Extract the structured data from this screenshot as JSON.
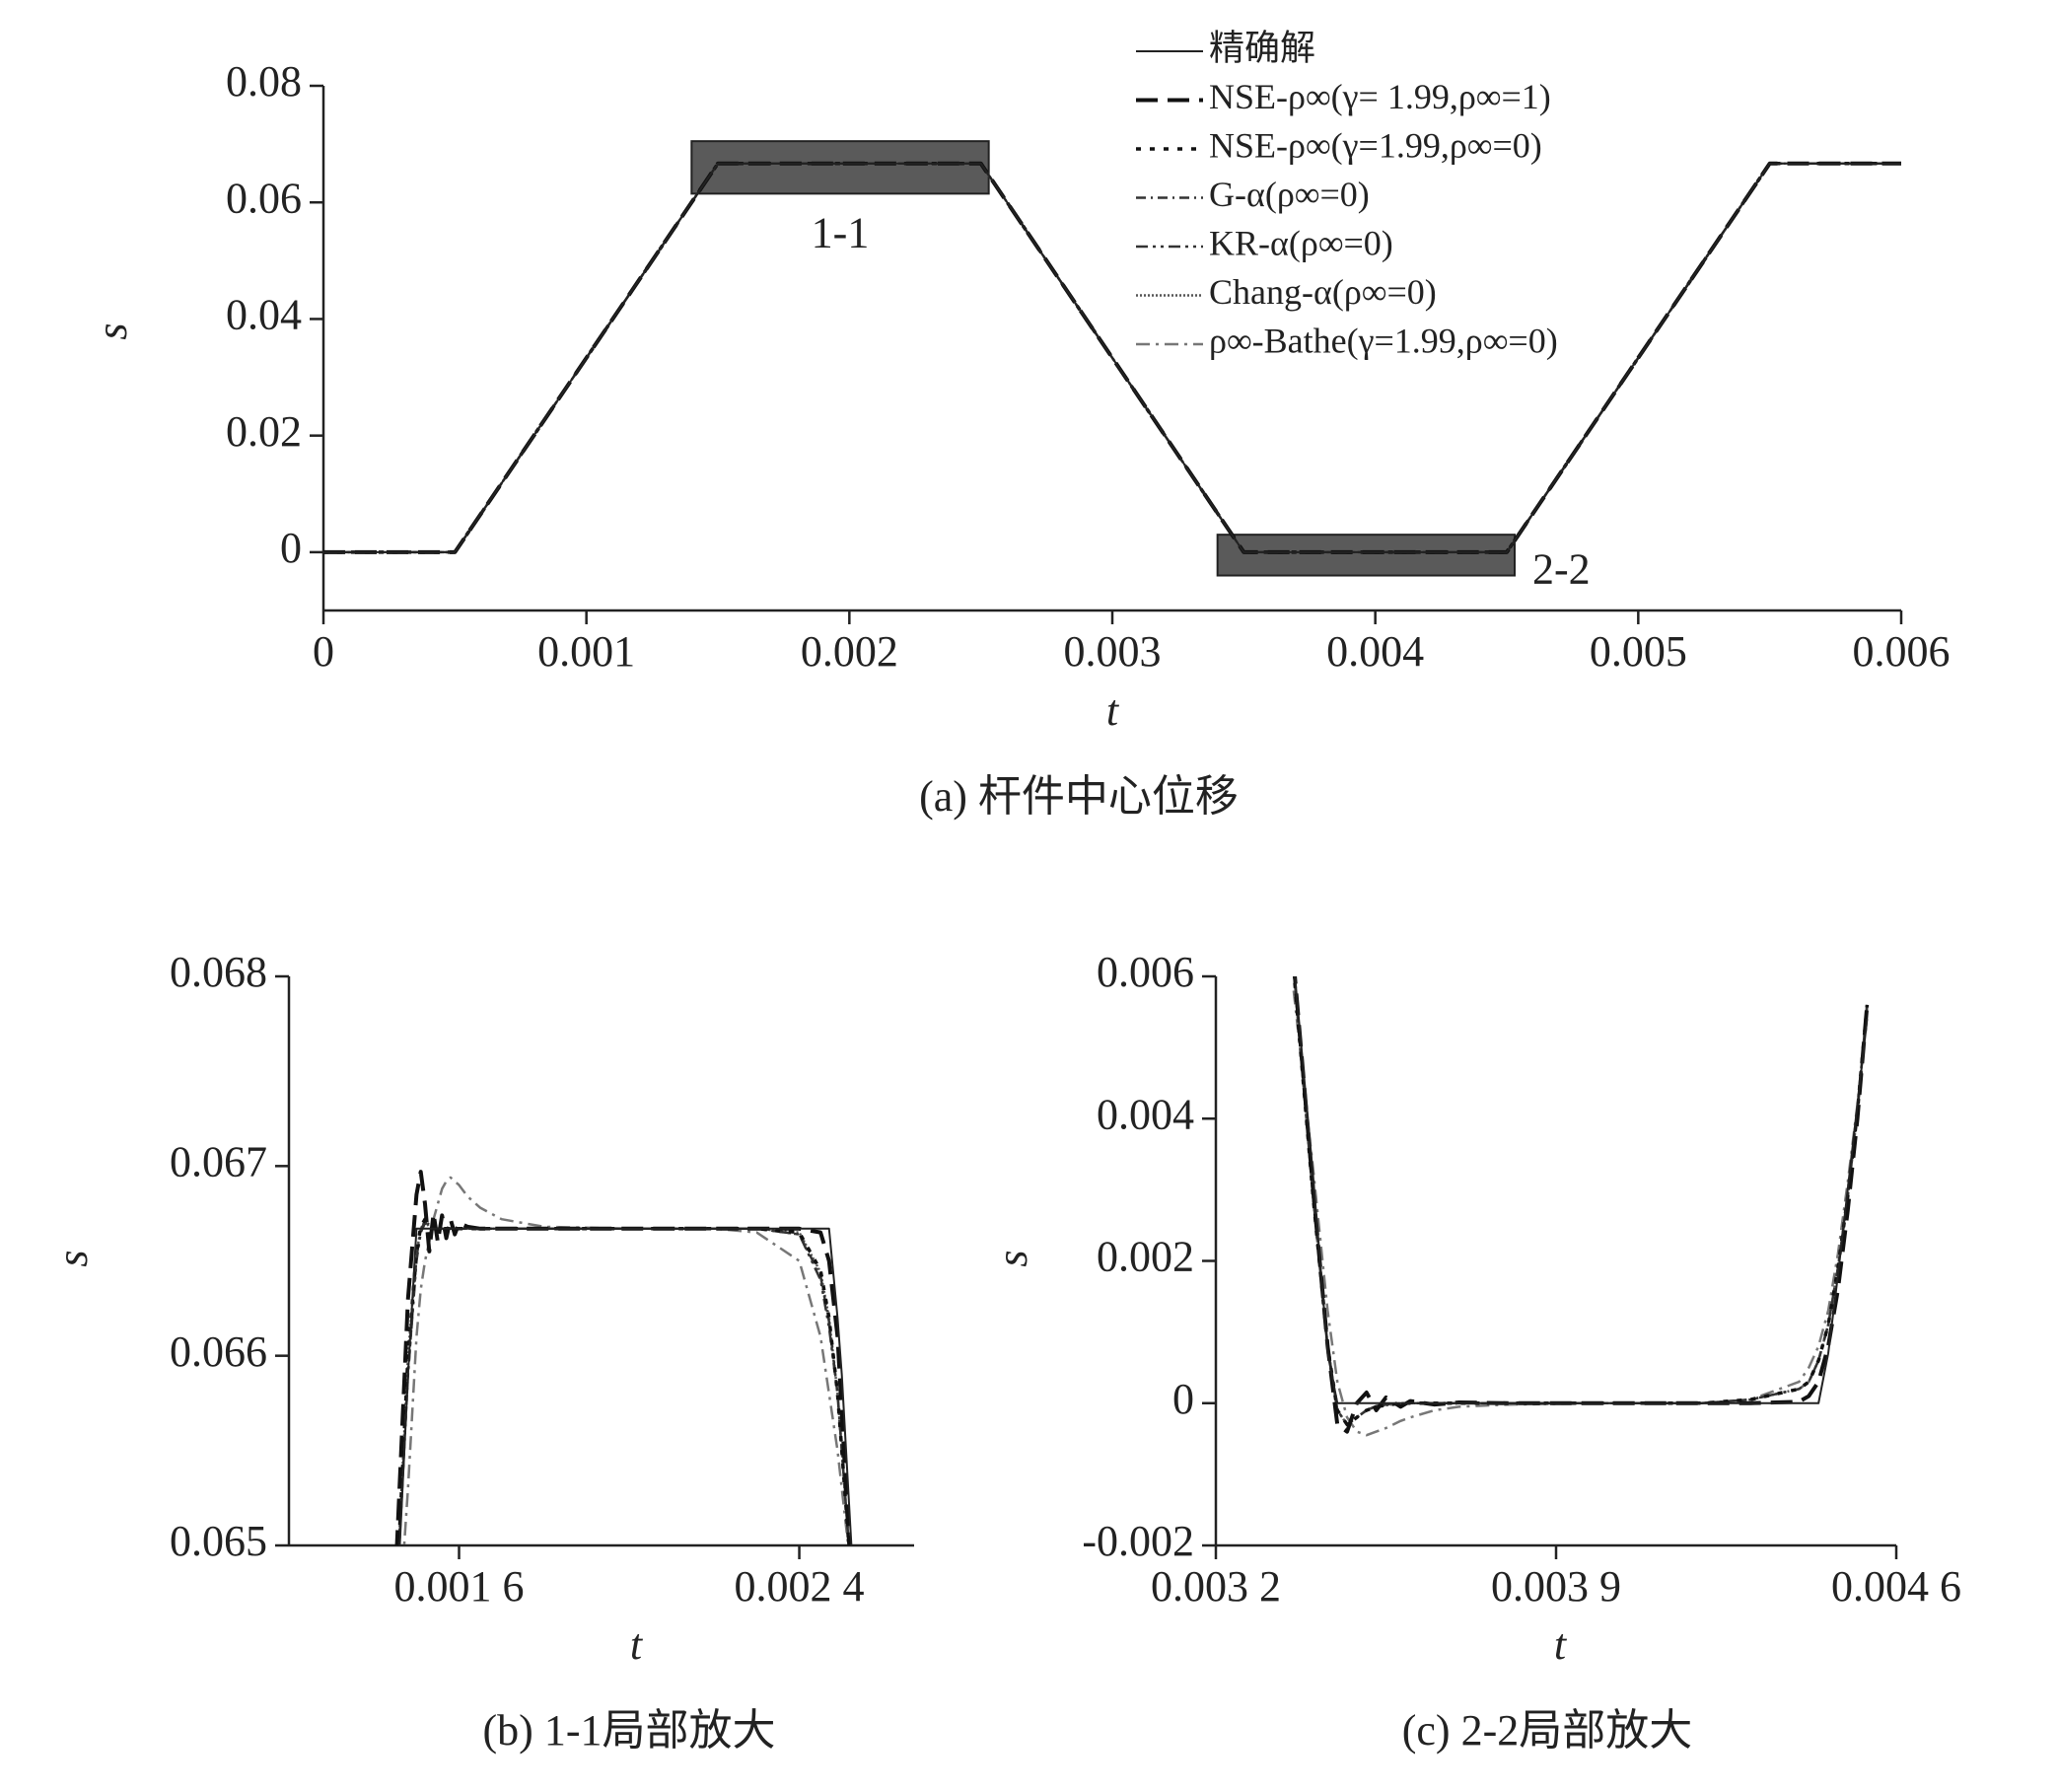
{
  "chart_data": [
    {
      "type": "line",
      "caption": "(a) 杆件中心位移",
      "xlabel": "t",
      "ylabel": "s",
      "xlim": [
        0,
        0.006
      ],
      "ylim": [
        -0.01,
        0.08
      ],
      "xticks": [
        0,
        0.001,
        0.002,
        0.003,
        0.004,
        0.005,
        0.006
      ],
      "yticks": [
        0,
        0.02,
        0.04,
        0.06,
        0.08
      ],
      "x": [
        0,
        0.0005,
        0.0015,
        0.0025,
        0.0035,
        0.0045,
        0.0055,
        0.006
      ],
      "series": [
        {
          "name": "精确解",
          "color": "#222222",
          "values": [
            0,
            0,
            0.06667,
            0.06667,
            0,
            0,
            0.06667,
            0.06667
          ]
        },
        {
          "name": "NSE-ρ∞(γ= 1.99,ρ∞=1)",
          "color": "#111111",
          "values": [
            0,
            0,
            0.06667,
            0.06667,
            0,
            0,
            0.06667,
            0.06667
          ]
        },
        {
          "name": "NSE-ρ∞(γ=1.99,ρ∞=0)",
          "color": "#111111",
          "values": [
            0,
            0,
            0.06667,
            0.06667,
            0,
            0,
            0.06667,
            0.06667
          ]
        },
        {
          "name": "G-α(ρ∞=0)",
          "color": "#333333",
          "values": [
            0,
            0,
            0.06667,
            0.06667,
            0,
            0,
            0.06667,
            0.06667
          ]
        },
        {
          "name": "KR-α(ρ∞=0)",
          "color": "#333333",
          "values": [
            0,
            0,
            0.06667,
            0.06667,
            0,
            0,
            0.06667,
            0.06667
          ]
        },
        {
          "name": "Chang-α(ρ∞=0)",
          "color": "#555555",
          "values": [
            0,
            0,
            0.06667,
            0.06667,
            0,
            0,
            0.06667,
            0.06667
          ]
        },
        {
          "name": "ρ∞-Bathe(γ=1.99,ρ∞=0)",
          "color": "#777777",
          "values": [
            0,
            0,
            0.06667,
            0.06667,
            0,
            0,
            0.06667,
            0.06667
          ]
        }
      ],
      "regions": [
        {
          "label": "1-1",
          "x": [
            0.0014,
            0.00253
          ],
          "y": [
            0.0615,
            0.0705
          ]
        },
        {
          "label": "2-2",
          "x": [
            0.0034,
            0.00453
          ],
          "y": [
            -0.004,
            0.003
          ]
        }
      ]
    },
    {
      "type": "line",
      "caption": "(b) 1-1局部放大",
      "xlabel": "t",
      "ylabel": "s",
      "xlim": [
        0.0012,
        0.00267
      ],
      "ylim": [
        0.065,
        0.068
      ],
      "xticks": [
        {
          "value": 0.0016,
          "label": "0.001 6"
        },
        {
          "value": 0.0024,
          "label": "0.002 4"
        }
      ],
      "yticks": [
        0.065,
        0.066,
        0.067,
        0.068
      ],
      "x": [
        0.00145,
        0.00148,
        0.0015,
        0.00151,
        0.00152,
        0.00153,
        0.00154,
        0.00155,
        0.00156,
        0.00157,
        0.00158,
        0.00159,
        0.0016,
        0.00162,
        0.00165,
        0.0017,
        0.0018,
        0.002,
        0.0022,
        0.0023,
        0.0024,
        0.00245,
        0.00247,
        0.00249,
        0.0025,
        0.00251,
        0.00252,
        0.00253,
        0.00254
      ],
      "series": [
        {
          "color": "#222222",
          "values": [
            0.0645,
            0.0659,
            0.06667,
            0.06667,
            0.06667,
            0.06667,
            0.06667,
            0.06667,
            0.06667,
            0.06667,
            0.06667,
            0.06667,
            0.06667,
            0.06667,
            0.06667,
            0.06667,
            0.06667,
            0.06667,
            0.06667,
            0.06667,
            0.06667,
            0.06667,
            0.06667,
            0.0662,
            0.0659,
            0.0655,
            0.0651,
            0.0647,
            0.0643
          ]
        },
        {
          "color": "#111111",
          "values": [
            0.0648,
            0.0663,
            0.06685,
            0.06697,
            0.0668,
            0.06655,
            0.06675,
            0.0666,
            0.06674,
            0.06662,
            0.06672,
            0.06664,
            0.0667,
            0.06668,
            0.06667,
            0.06667,
            0.06667,
            0.06667,
            0.06667,
            0.06667,
            0.06667,
            0.06665,
            0.0665,
            0.0661,
            0.0657,
            0.0653,
            0.0649,
            0.0645,
            0.0641
          ]
        },
        {
          "color": "#111111",
          "values": [
            0.0646,
            0.066,
            0.06655,
            0.06668,
            0.06672,
            0.06668,
            0.06667,
            0.06667,
            0.06667,
            0.06667,
            0.06667,
            0.06667,
            0.06667,
            0.06667,
            0.06667,
            0.06667,
            0.06667,
            0.06667,
            0.06667,
            0.06667,
            0.06665,
            0.06645,
            0.0662,
            0.0658,
            0.0655,
            0.0652,
            0.0649,
            0.0646,
            0.0643
          ]
        },
        {
          "color": "#333333",
          "values": [
            0.0646,
            0.0659,
            0.06652,
            0.06666,
            0.06671,
            0.06669,
            0.06667,
            0.06667,
            0.06667,
            0.06667,
            0.06667,
            0.06667,
            0.06667,
            0.06667,
            0.06667,
            0.06667,
            0.06667,
            0.06667,
            0.06667,
            0.06667,
            0.06664,
            0.06642,
            0.06618,
            0.0658,
            0.0655,
            0.0652,
            0.0649,
            0.0646,
            0.0643
          ]
        },
        {
          "color": "#333333",
          "values": [
            0.0646,
            0.0659,
            0.0665,
            0.06665,
            0.0667,
            0.06669,
            0.06667,
            0.06667,
            0.06667,
            0.06667,
            0.06667,
            0.06667,
            0.06667,
            0.06667,
            0.06667,
            0.06667,
            0.06667,
            0.06667,
            0.06667,
            0.06667,
            0.06664,
            0.0664,
            0.06615,
            0.0658,
            0.0655,
            0.0652,
            0.0649,
            0.0646,
            0.0643
          ]
        },
        {
          "color": "#555555",
          "values": [
            0.0646,
            0.066,
            0.06654,
            0.06667,
            0.06671,
            0.06668,
            0.06667,
            0.06667,
            0.06667,
            0.06667,
            0.06667,
            0.06667,
            0.06667,
            0.06667,
            0.06667,
            0.06667,
            0.06667,
            0.06667,
            0.06667,
            0.06667,
            0.06665,
            0.06644,
            0.0662,
            0.0658,
            0.0655,
            0.0652,
            0.0649,
            0.0646,
            0.0643
          ]
        },
        {
          "color": "#777777",
          "values": [
            0.0643,
            0.0653,
            0.0661,
            0.06635,
            0.0665,
            0.0666,
            0.06672,
            0.0668,
            0.06688,
            0.06692,
            0.06694,
            0.06692,
            0.0669,
            0.06684,
            0.06678,
            0.06672,
            0.06668,
            0.06667,
            0.06667,
            0.06665,
            0.0665,
            0.0661,
            0.0658,
            0.0655,
            0.0653,
            0.0651,
            0.0649,
            0.0647,
            0.0645
          ]
        }
      ]
    },
    {
      "type": "line",
      "caption": "(c) 2-2局部放大",
      "xlabel": "t",
      "ylabel": "s",
      "xlim": [
        0.0032,
        0.0046
      ],
      "ylim": [
        -0.002,
        0.006
      ],
      "xticks": [
        {
          "value": 0.0032,
          "label": "0.003 2"
        },
        {
          "value": 0.0039,
          "label": "0.003 9"
        },
        {
          "value": 0.0046,
          "label": "0.004 6"
        }
      ],
      "yticks": [
        -0.002,
        0,
        0.002,
        0.004,
        0.006
      ],
      "x": [
        0.00336,
        0.0034,
        0.00343,
        0.00345,
        0.00347,
        0.00349,
        0.00351,
        0.00353,
        0.00355,
        0.00358,
        0.0036,
        0.00365,
        0.0037,
        0.0038,
        0.004,
        0.0042,
        0.0043,
        0.0044,
        0.00442,
        0.00444,
        0.00446,
        0.00448,
        0.0045,
        0.00452,
        0.00454
      ],
      "series": [
        {
          "color": "#222222",
          "values": [
            0.0062,
            0.0032,
            0.0007,
            0,
            0,
            0,
            0,
            0,
            0,
            0,
            0,
            0,
            0,
            0,
            0,
            0,
            0,
            0,
            0,
            0,
            0.0007,
            0.0018,
            0.003,
            0.0042,
            0.0054
          ]
        },
        {
          "color": "#111111",
          "values": [
            0.0062,
            0.003,
            0.0008,
            -0.0003,
            -0.0004,
            0,
            0.00015,
            -0.0001,
            8e-05,
            -5e-05,
            3e-05,
            -2e-05,
            1e-05,
            0,
            0,
            0,
            0,
            2e-05,
            0.0001,
            0.0003,
            0.0008,
            0.0016,
            0.0027,
            0.004,
            0.0056
          ]
        },
        {
          "color": "#111111",
          "values": [
            0.0061,
            0.0029,
            0.0008,
            -0.0001,
            -0.0003,
            -0.0002,
            -0.0001,
            -5e-05,
            -3e-05,
            0,
            0,
            0,
            0,
            0,
            0,
            0,
            5e-05,
            0.0002,
            0.0003,
            0.0006,
            0.0011,
            0.0019,
            0.0029,
            0.0041,
            0.0056
          ]
        },
        {
          "color": "#333333",
          "values": [
            0.0061,
            0.0029,
            0.0008,
            -0.0001,
            -0.0003,
            -0.0002,
            -0.0001,
            -5e-05,
            -2e-05,
            0,
            0,
            0,
            0,
            0,
            0,
            0,
            5e-05,
            0.0002,
            0.0003,
            0.0006,
            0.0011,
            0.0019,
            0.0029,
            0.0041,
            0.0056
          ]
        },
        {
          "color": "#333333",
          "values": [
            0.0061,
            0.0029,
            0.0008,
            -0.0001,
            -0.0003,
            -0.0002,
            -0.0001,
            -4e-05,
            -2e-05,
            0,
            0,
            0,
            0,
            0,
            0,
            0,
            5e-05,
            0.0002,
            0.0003,
            0.0006,
            0.0011,
            0.0019,
            0.0029,
            0.0041,
            0.0056
          ]
        },
        {
          "color": "#555555",
          "values": [
            0.0061,
            0.0029,
            0.0008,
            -0.0001,
            -0.0003,
            -0.0002,
            -0.0001,
            -5e-05,
            -3e-05,
            0,
            0,
            0,
            0,
            0,
            0,
            0,
            5e-05,
            0.0002,
            0.0003,
            0.0006,
            0.0011,
            0.0019,
            0.0029,
            0.0041,
            0.0056
          ]
        },
        {
          "color": "#777777",
          "values": [
            0.0058,
            0.0033,
            0.0013,
            0.0003,
            -0.0002,
            -0.0004,
            -0.00045,
            -0.0004,
            -0.00035,
            -0.00025,
            -0.0002,
            -0.0001,
            -5e-05,
            -2e-05,
            0,
            0,
            5e-05,
            0.0003,
            0.0005,
            0.0008,
            0.0013,
            0.0021,
            0.0031,
            0.0042,
            0.0055
          ]
        }
      ]
    }
  ]
}
